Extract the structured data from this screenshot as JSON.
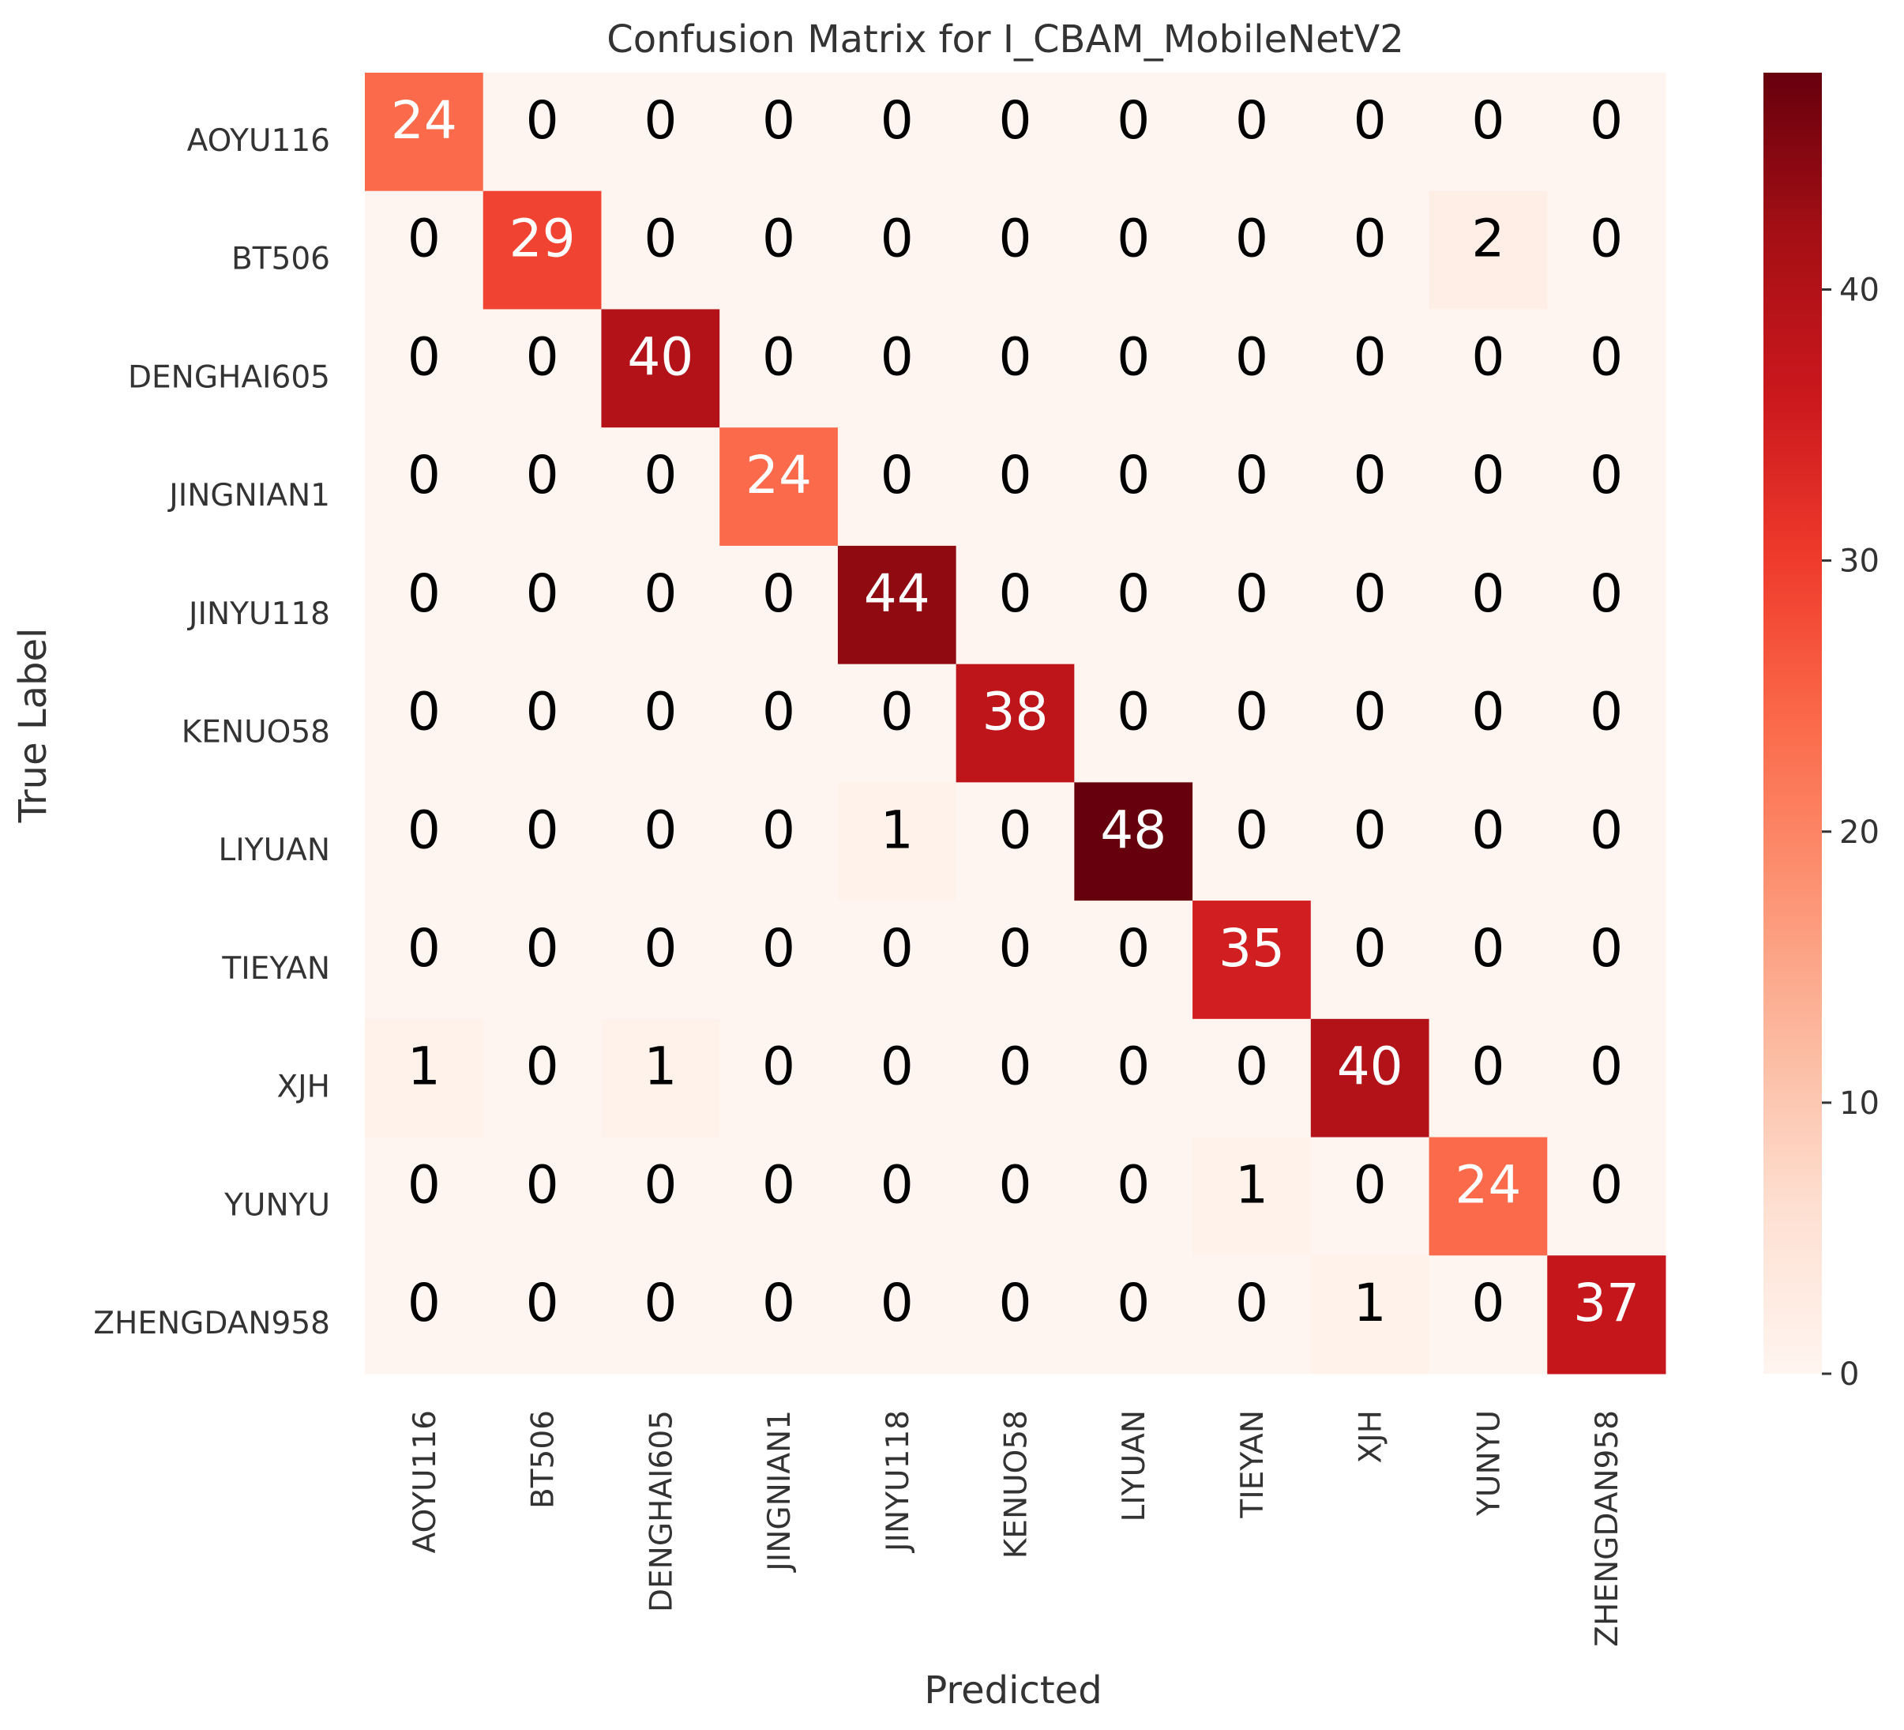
{
  "chart_data": {
    "type": "heatmap",
    "title": "Confusion Matrix for I_CBAM_MobileNetV2",
    "xlabel": "Predicted",
    "ylabel": "True Label",
    "x_categories": [
      "AOYU116",
      "BT506",
      "DENGHAI605",
      "JINGNIAN1",
      "JINYU118",
      "KENUO58",
      "LIYUAN",
      "TIEYAN",
      "XJH",
      "YUNYU",
      "ZHENGDAN958"
    ],
    "y_categories": [
      "AOYU116",
      "BT506",
      "DENGHAI605",
      "JINGNIAN1",
      "JINYU118",
      "KENUO58",
      "LIYUAN",
      "TIEYAN",
      "XJH",
      "YUNYU",
      "ZHENGDAN958"
    ],
    "values": [
      [
        24,
        0,
        0,
        0,
        0,
        0,
        0,
        0,
        0,
        0,
        0
      ],
      [
        0,
        29,
        0,
        0,
        0,
        0,
        0,
        0,
        0,
        2,
        0
      ],
      [
        0,
        0,
        40,
        0,
        0,
        0,
        0,
        0,
        0,
        0,
        0
      ],
      [
        0,
        0,
        0,
        24,
        0,
        0,
        0,
        0,
        0,
        0,
        0
      ],
      [
        0,
        0,
        0,
        0,
        44,
        0,
        0,
        0,
        0,
        0,
        0
      ],
      [
        0,
        0,
        0,
        0,
        0,
        38,
        0,
        0,
        0,
        0,
        0
      ],
      [
        0,
        0,
        0,
        0,
        1,
        0,
        48,
        0,
        0,
        0,
        0
      ],
      [
        0,
        0,
        0,
        0,
        0,
        0,
        0,
        35,
        0,
        0,
        0
      ],
      [
        1,
        0,
        1,
        0,
        0,
        0,
        0,
        0,
        40,
        0,
        0
      ],
      [
        0,
        0,
        0,
        0,
        0,
        0,
        0,
        1,
        0,
        24,
        0
      ],
      [
        0,
        0,
        0,
        0,
        0,
        0,
        0,
        0,
        1,
        0,
        37
      ]
    ],
    "colormap": "Reds",
    "colormap_stops": [
      "#fff5f0",
      "#fee0d2",
      "#fcbba1",
      "#fc9272",
      "#fb6a4a",
      "#ef3b2c",
      "#cb181d",
      "#a50f15",
      "#67000d"
    ],
    "vmin": 0,
    "vmax": 48,
    "colorbar_ticks": [
      0,
      10,
      20,
      30,
      40
    ],
    "annotated": true,
    "grid": false,
    "colorbar_position": "right"
  }
}
